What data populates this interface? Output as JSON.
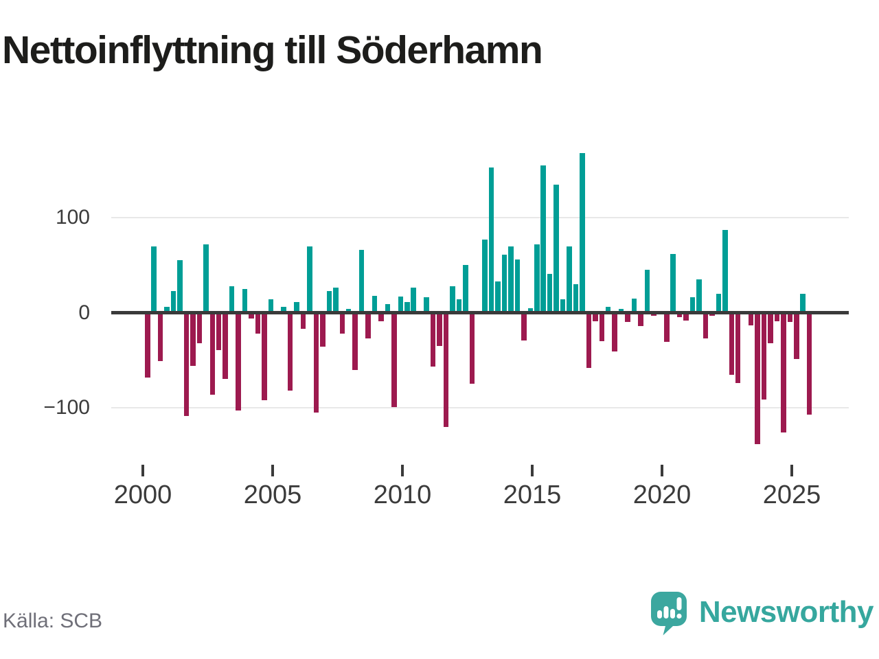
{
  "title": "Nettoinflyttning till Söderhamn",
  "source": "Källa: SCB",
  "brand": {
    "name": "Newsworthy"
  },
  "colors": {
    "positive_bar": "#009E96",
    "negative_bar": "#9D1A4F",
    "zero_line": "#3A3A3A",
    "gridline": "#E8E8E8",
    "axis_text": "#3B3B3B",
    "title_text": "#1D1D1B",
    "source_text": "#6F6F78",
    "brand_teal": "#3CA79F"
  },
  "y_axis": {
    "ticks": [
      {
        "label": "100",
        "value": 100
      },
      {
        "label": "0",
        "value": 0
      },
      {
        "label": "−100",
        "value": -100
      }
    ]
  },
  "x_axis": {
    "tick_labels": [
      "2000",
      "2005",
      "2010",
      "2015",
      "2020",
      "2025"
    ]
  },
  "chart_data": {
    "type": "bar",
    "title": "Nettoinflyttning till Söderhamn",
    "frequency": "quarterly",
    "start": "2000-Q1",
    "end": "2025-Q3",
    "ylim": [
      -150,
      175
    ],
    "grid": "horizontal",
    "legend": "none",
    "values": [
      -68,
      70,
      -51,
      6,
      23,
      55,
      -109,
      -56,
      -32,
      72,
      -86,
      -39,
      -70,
      28,
      -103,
      25,
      -6,
      -22,
      -92,
      14,
      0,
      6,
      -82,
      11,
      -17,
      70,
      -105,
      -36,
      23,
      26,
      -22,
      4,
      -60,
      66,
      -27,
      18,
      -9,
      9,
      -99,
      17,
      11,
      26,
      0,
      16,
      -57,
      -35,
      -120,
      28,
      14,
      50,
      -75,
      0,
      77,
      153,
      33,
      61,
      70,
      56,
      -29,
      5,
      72,
      155,
      41,
      135,
      14,
      70,
      30,
      168,
      -58,
      -9,
      -30,
      6,
      -41,
      4,
      -10,
      15,
      -14,
      45,
      -3,
      0,
      -31,
      62,
      -5,
      -8,
      16,
      35,
      -27,
      -3,
      20,
      87,
      -65,
      -74,
      0,
      -13,
      -138,
      -91,
      -32,
      -9,
      -126,
      -10,
      -49,
      20,
      -107
    ]
  }
}
